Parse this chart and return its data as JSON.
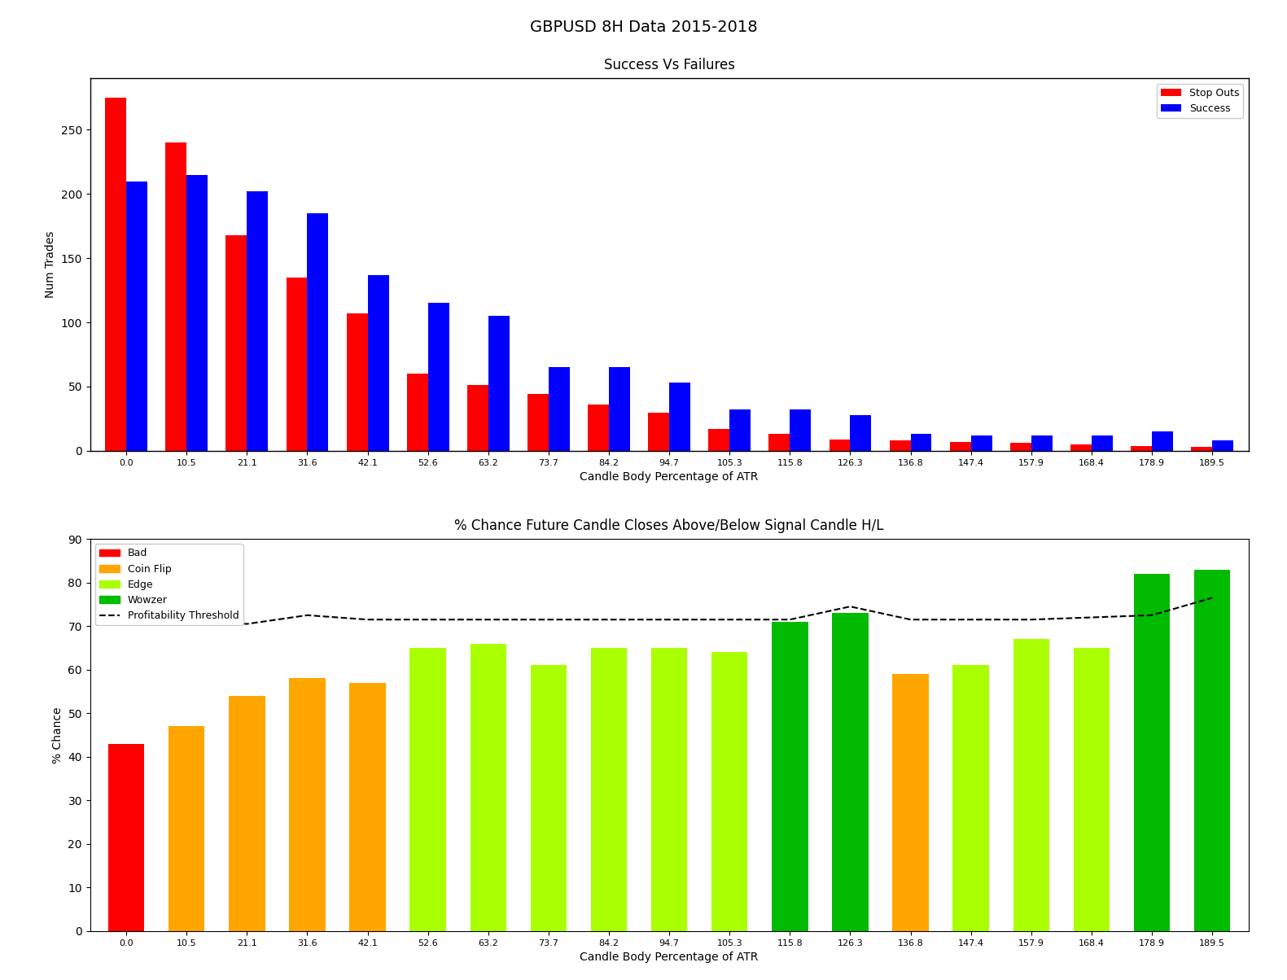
{
  "title": "GBPUSD 8H Data 2015-2018",
  "categories": [
    "0.0",
    "10.5",
    "21.1",
    "31.6",
    "42.1",
    "52.6",
    "63.2",
    "73.7",
    "84.2",
    "94.7",
    "105.3",
    "115.8",
    "126.3",
    "136.8",
    "147.4",
    "157.9",
    "168.4",
    "178.9",
    "189.5"
  ],
  "stop_outs": [
    275,
    240,
    168,
    135,
    107,
    60,
    51,
    44,
    36,
    30,
    17,
    13,
    9,
    8,
    7,
    6,
    5,
    4,
    3
  ],
  "success": [
    210,
    215,
    202,
    185,
    137,
    115,
    105,
    65,
    65,
    53,
    32,
    32,
    28,
    13,
    12,
    12,
    12,
    15,
    8
  ],
  "chart1_title": "Success Vs Failures",
  "chart1_xlabel": "Candle Body Percentage of ATR",
  "chart1_ylabel": "Num Trades",
  "chart2_title": "% Chance Future Candle Closes Above/Below Signal Candle H/L",
  "chart2_xlabel": "Candle Body Percentage of ATR",
  "chart2_ylabel": "% Chance",
  "pct_chance": [
    43,
    47,
    54,
    58,
    57,
    65,
    66,
    61,
    65,
    65,
    64,
    71,
    73,
    59,
    61,
    67,
    65,
    82,
    83
  ],
  "bar_color_map": {
    "0": "red",
    "1": "orange",
    "2": "orange",
    "3": "orange",
    "4": "orange",
    "5": "#aaff00",
    "6": "#aaff00",
    "7": "#aaff00",
    "8": "#aaff00",
    "9": "#aaff00",
    "10": "#aaff00",
    "11": "#00bb00",
    "12": "#00bb00",
    "13": "orange",
    "14": "#aaff00",
    "15": "#aaff00",
    "16": "#aaff00",
    "17": "#00bb00",
    "18": "#00bb00"
  },
  "threshold_y": [
    73.0,
    71.5,
    70.5,
    72.5,
    71.5,
    71.5,
    71.5,
    71.5,
    71.5,
    71.5,
    71.5,
    71.5,
    74.5,
    71.5,
    71.5,
    71.5,
    72.0,
    72.5,
    76.5
  ],
  "legend2_labels": [
    "Bad",
    "Coin Flip",
    "Edge",
    "Wowzer",
    "Profitability Threshold"
  ],
  "legend2_colors": [
    "red",
    "orange",
    "#aaff00",
    "#00bb00",
    "black"
  ],
  "chart1_ylim": [
    0,
    290
  ],
  "chart2_ylim": [
    0,
    90
  ]
}
